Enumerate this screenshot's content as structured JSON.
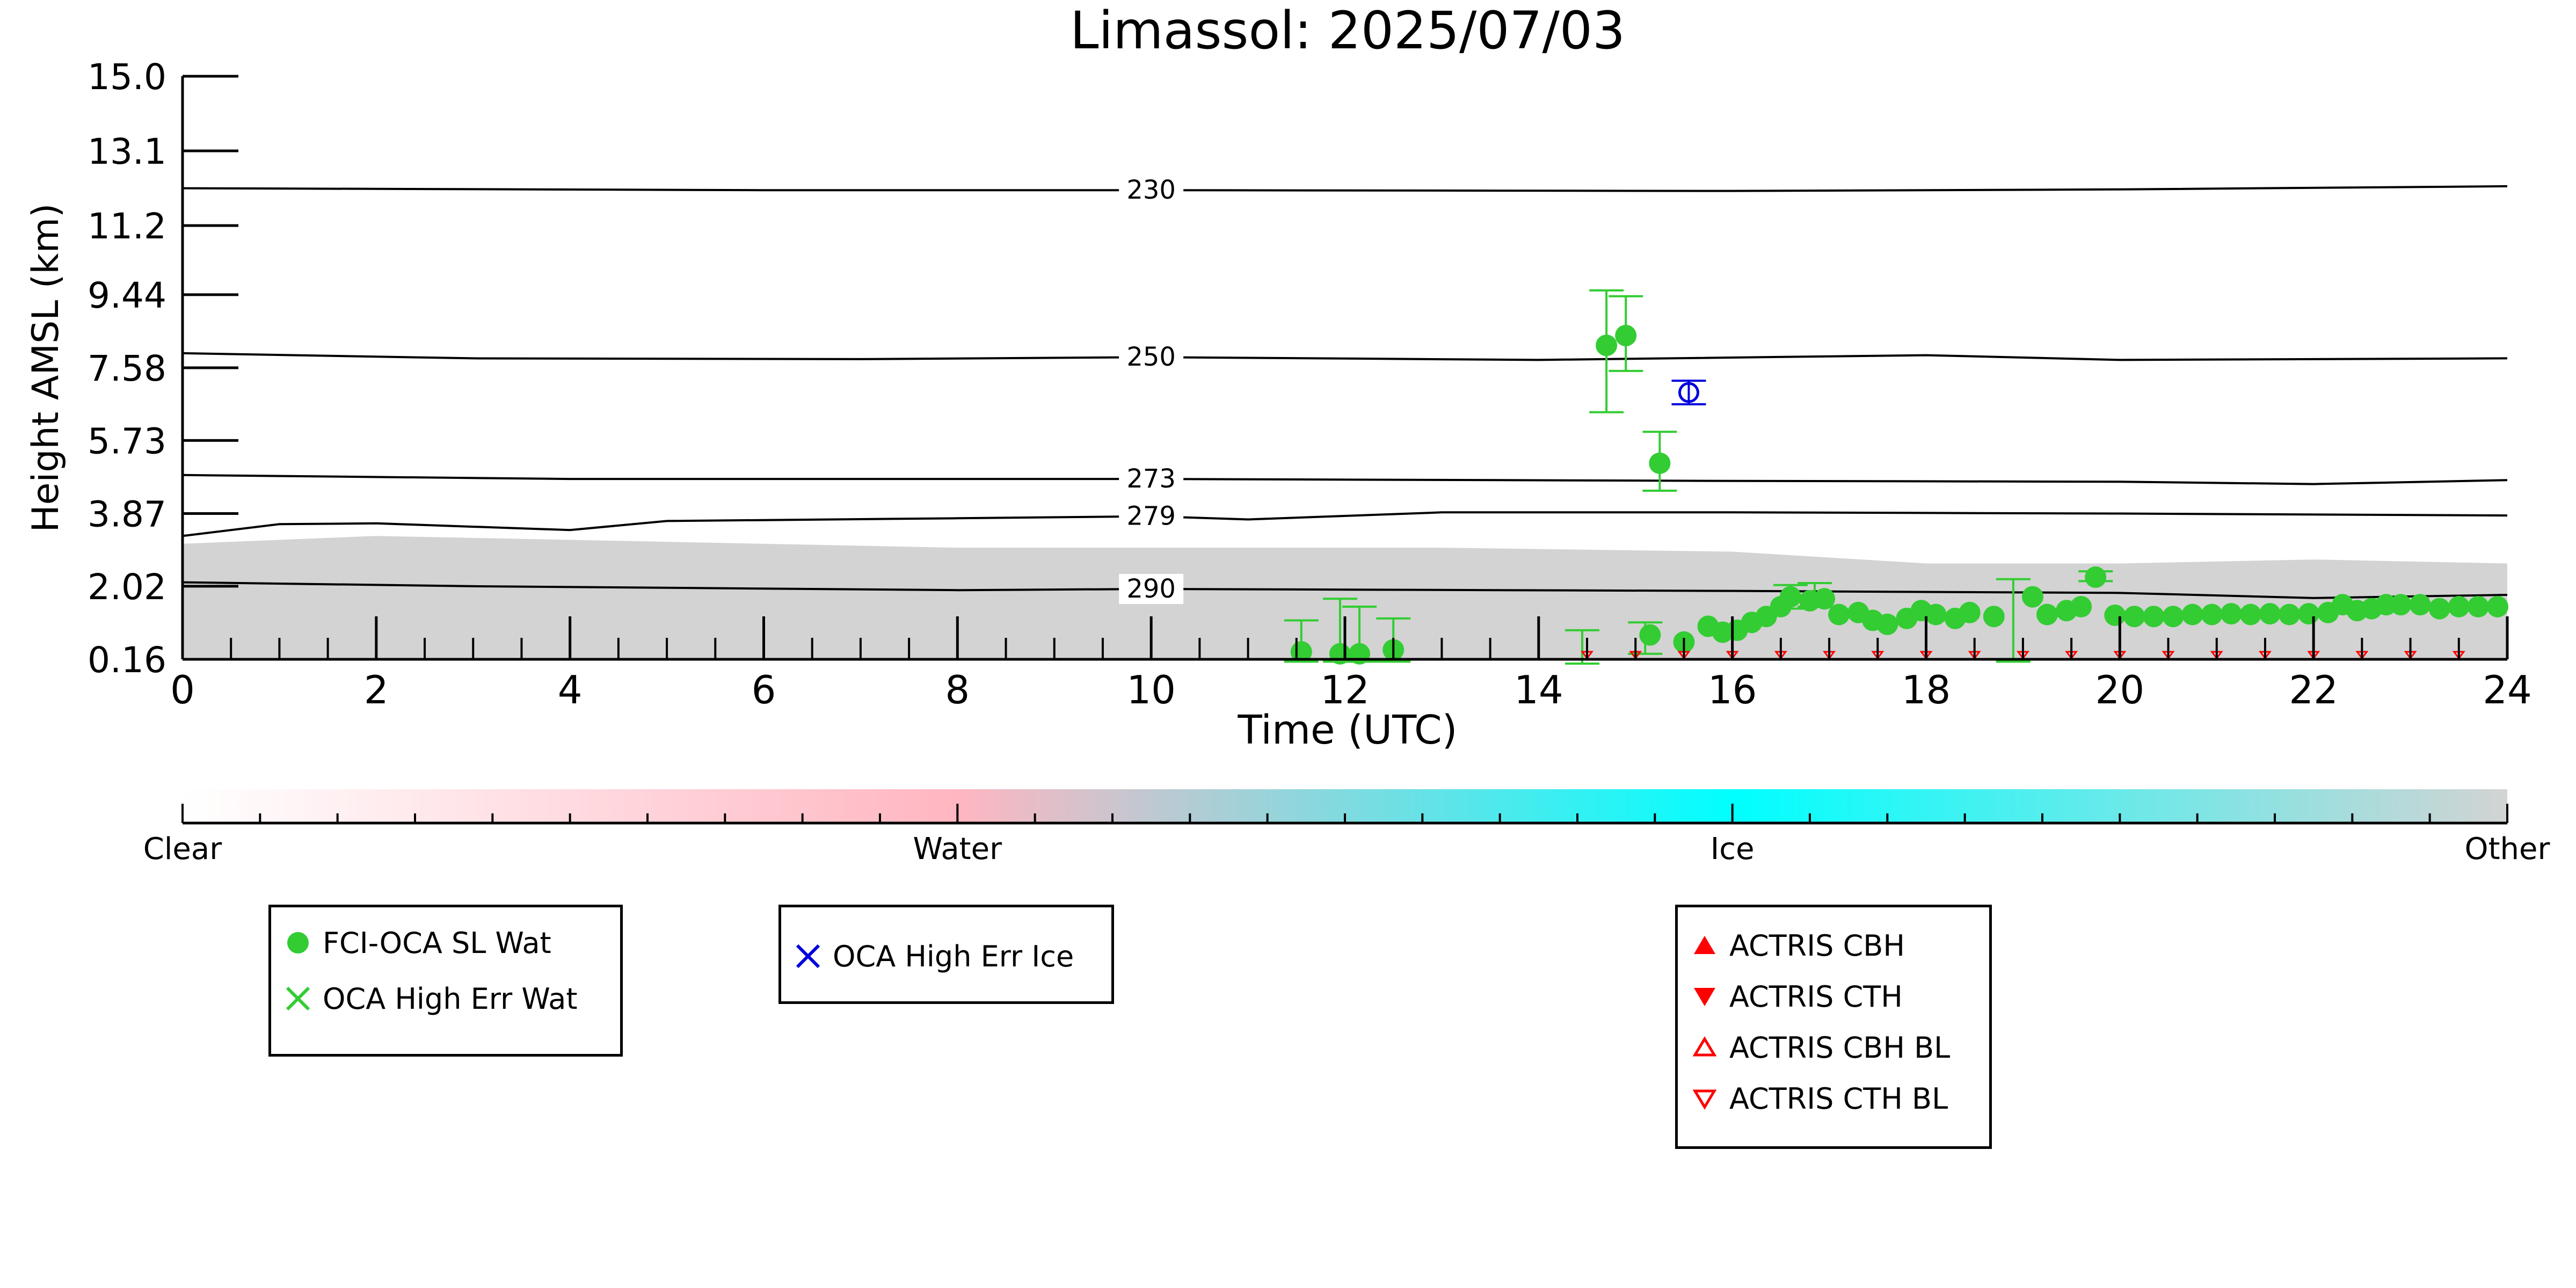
{
  "chart_data": {
    "type": "scatter",
    "title": "Limassol: 2025/07/03",
    "xlabel": "Time (UTC)",
    "ylabel": "Height AMSL (km)",
    "xlim": [
      0,
      24
    ],
    "ylim": [
      0.16,
      15.0
    ],
    "x_ticks": [
      "0",
      "2",
      "4",
      "6",
      "8",
      "10",
      "12",
      "14",
      "16",
      "18",
      "20",
      "22",
      "24"
    ],
    "y_ticks": [
      "0.16",
      "2.02",
      "3.87",
      "5.73",
      "7.58",
      "9.44",
      "11.2",
      "13.1",
      "15.0"
    ],
    "isotherms": [
      {
        "label": "230",
        "points": [
          [
            0,
            12.15
          ],
          [
            6,
            12.1
          ],
          [
            10,
            12.1
          ],
          [
            16,
            12.08
          ],
          [
            20,
            12.12
          ],
          [
            24,
            12.2
          ]
        ]
      },
      {
        "label": "250",
        "points": [
          [
            0,
            7.95
          ],
          [
            3,
            7.82
          ],
          [
            7,
            7.8
          ],
          [
            10,
            7.85
          ],
          [
            14,
            7.78
          ],
          [
            18,
            7.9
          ],
          [
            20,
            7.78
          ],
          [
            24,
            7.82
          ]
        ]
      },
      {
        "label": "273",
        "points": [
          [
            0,
            4.85
          ],
          [
            4,
            4.75
          ],
          [
            10,
            4.75
          ],
          [
            16,
            4.7
          ],
          [
            20,
            4.68
          ],
          [
            22,
            4.62
          ],
          [
            24,
            4.72
          ]
        ]
      },
      {
        "label": "279",
        "points": [
          [
            0,
            3.3
          ],
          [
            1,
            3.6
          ],
          [
            2,
            3.62
          ],
          [
            4,
            3.45
          ],
          [
            5,
            3.68
          ],
          [
            8,
            3.75
          ],
          [
            10,
            3.8
          ],
          [
            11,
            3.72
          ],
          [
            13,
            3.9
          ],
          [
            16,
            3.9
          ],
          [
            20,
            3.87
          ],
          [
            24,
            3.82
          ]
        ]
      },
      {
        "label": "290",
        "points": [
          [
            0,
            2.12
          ],
          [
            3,
            2.02
          ],
          [
            8,
            1.92
          ],
          [
            10,
            1.95
          ],
          [
            16,
            1.9
          ],
          [
            20,
            1.85
          ],
          [
            22,
            1.72
          ],
          [
            24,
            1.8
          ]
        ]
      }
    ],
    "aerosol_layer_top": [
      [
        0,
        3.1
      ],
      [
        2,
        3.3
      ],
      [
        4,
        3.2
      ],
      [
        6,
        3.1
      ],
      [
        8,
        3.0
      ],
      [
        10,
        3.0
      ],
      [
        13,
        3.0
      ],
      [
        16,
        2.9
      ],
      [
        18,
        2.6
      ],
      [
        20,
        2.6
      ],
      [
        22,
        2.7
      ],
      [
        24,
        2.6
      ]
    ],
    "series": [
      {
        "name": "FCI-OCA SL Wat",
        "color": "#33cc33",
        "marker": "circle",
        "points": [
          [
            11.55,
            0.35
          ],
          [
            11.95,
            0.3
          ],
          [
            12.15,
            0.3
          ],
          [
            12.5,
            0.4
          ],
          [
            14.7,
            8.15
          ],
          [
            14.9,
            8.4
          ],
          [
            15.25,
            5.15
          ],
          [
            15.15,
            0.78
          ],
          [
            15.5,
            0.6
          ],
          [
            15.75,
            1.0
          ],
          [
            15.9,
            0.85
          ],
          [
            16.05,
            0.9
          ],
          [
            16.2,
            1.1
          ],
          [
            16.35,
            1.25
          ],
          [
            16.5,
            1.5
          ],
          [
            16.6,
            1.75
          ],
          [
            16.8,
            1.65
          ],
          [
            16.95,
            1.7
          ],
          [
            17.1,
            1.3
          ],
          [
            17.3,
            1.35
          ],
          [
            17.45,
            1.15
          ],
          [
            17.6,
            1.05
          ],
          [
            17.8,
            1.2
          ],
          [
            17.95,
            1.4
          ],
          [
            18.1,
            1.3
          ],
          [
            18.3,
            1.2
          ],
          [
            18.45,
            1.35
          ],
          [
            18.7,
            1.25
          ],
          [
            19.1,
            1.75
          ],
          [
            19.25,
            1.3
          ],
          [
            19.45,
            1.4
          ],
          [
            19.6,
            1.5
          ],
          [
            19.75,
            2.25
          ],
          [
            19.95,
            1.28
          ],
          [
            20.15,
            1.25
          ],
          [
            20.35,
            1.25
          ],
          [
            20.55,
            1.25
          ],
          [
            20.75,
            1.3
          ],
          [
            20.95,
            1.3
          ],
          [
            21.15,
            1.32
          ],
          [
            21.35,
            1.3
          ],
          [
            21.55,
            1.32
          ],
          [
            21.75,
            1.3
          ],
          [
            21.95,
            1.32
          ],
          [
            22.15,
            1.35
          ],
          [
            22.3,
            1.55
          ],
          [
            22.45,
            1.4
          ],
          [
            22.6,
            1.45
          ],
          [
            22.75,
            1.55
          ],
          [
            22.9,
            1.55
          ],
          [
            23.1,
            1.55
          ],
          [
            23.3,
            1.45
          ],
          [
            23.5,
            1.5
          ],
          [
            23.7,
            1.5
          ],
          [
            23.9,
            1.5
          ]
        ],
        "errorbars": [
          [
            11.55,
            0.35,
            0.25,
            0.8
          ],
          [
            11.95,
            0.3,
            0.2,
            1.4
          ],
          [
            12.15,
            0.3,
            0.2,
            1.2
          ],
          [
            12.5,
            0.4,
            0.3,
            0.8
          ],
          [
            14.7,
            8.15,
            1.7,
            1.4
          ],
          [
            14.9,
            8.4,
            0.9,
            1.0
          ],
          [
            15.25,
            5.15,
            0.7,
            0.8
          ],
          [
            14.45,
            0.2,
            0.15,
            0.7
          ],
          [
            15.1,
            0.6,
            0.3,
            0.5
          ],
          [
            16.6,
            1.75,
            0.3,
            0.3
          ],
          [
            16.85,
            1.8,
            0.3,
            0.3
          ],
          [
            18.9,
            0.6,
            0.5,
            1.6
          ],
          [
            19.75,
            2.25,
            0.1,
            0.15
          ]
        ]
      },
      {
        "name": "OCA High Err Wat",
        "color": "#33cc33",
        "marker": "x",
        "points": []
      },
      {
        "name": "OCA High Err Ice",
        "color": "#0000dd",
        "marker": "x",
        "points": [
          [
            15.55,
            6.95
          ]
        ],
        "errorbars": [
          [
            15.55,
            6.95,
            0.3,
            0.3
          ]
        ]
      },
      {
        "name": "ACTRIS CBH",
        "color": "#ff0000",
        "marker": "triangle-up",
        "points": []
      },
      {
        "name": "ACTRIS CTH",
        "color": "#ff0000",
        "marker": "triangle-down",
        "points": []
      },
      {
        "name": "ACTRIS CBH BL",
        "color": "#ff0000",
        "marker": "triangle-up-open",
        "points": []
      },
      {
        "name": "ACTRIS CTH BL",
        "color": "#ff0000",
        "marker": "triangle-down-open",
        "points": [
          [
            14.5,
            0.16
          ],
          [
            15.0,
            0.16
          ],
          [
            15.5,
            0.16
          ],
          [
            16.0,
            0.16
          ],
          [
            16.5,
            0.16
          ],
          [
            17.0,
            0.16
          ],
          [
            17.5,
            0.16
          ],
          [
            18.0,
            0.16
          ],
          [
            18.5,
            0.16
          ],
          [
            19.0,
            0.16
          ],
          [
            19.5,
            0.16
          ],
          [
            20.0,
            0.16
          ],
          [
            20.5,
            0.16
          ],
          [
            21.0,
            0.16
          ],
          [
            21.5,
            0.16
          ],
          [
            22.0,
            0.16
          ],
          [
            22.5,
            0.16
          ],
          [
            23.0,
            0.16
          ],
          [
            23.5,
            0.16
          ]
        ]
      }
    ],
    "colorbar": {
      "labels": [
        "Clear",
        "Water",
        "Ice",
        "Other"
      ],
      "colors": [
        "#ffffff",
        "#ffb6c1",
        "#00ffff",
        "#d3d3d3"
      ]
    },
    "legends": [
      [
        "FCI-OCA SL Wat",
        "OCA High Err Wat"
      ],
      [
        "OCA High Err Ice"
      ],
      [
        "ACTRIS CBH",
        "ACTRIS CTH",
        "ACTRIS CBH BL",
        "ACTRIS CTH BL"
      ]
    ]
  }
}
